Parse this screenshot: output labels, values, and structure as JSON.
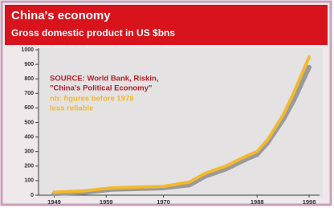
{
  "chart_data": {
    "type": "line",
    "title": "China's economy",
    "subtitle": "Gross domestic product in US $bns",
    "annotations": [
      "SOURCE: World Bank, Riskin,",
      "\"China's Political Economy\"",
      "nb: figures before 1978",
      "less reliable"
    ],
    "x": [
      1949,
      1955,
      1960,
      1965,
      1970,
      1975,
      1978,
      1982,
      1986,
      1988,
      1990,
      1993,
      1995,
      1998
    ],
    "series": [
      {
        "color": "#9a9a9a",
        "values": [
          10,
          20,
          40,
          45,
          50,
          70,
          130,
          180,
          250,
          280,
          360,
          520,
          650,
          880
        ]
      },
      {
        "color": "#f2b930",
        "values": [
          20,
          30,
          50,
          55,
          60,
          90,
          150,
          200,
          270,
          300,
          380,
          550,
          700,
          950
        ]
      }
    ],
    "xlim": [
      1946,
      2000
    ],
    "xticks": [
      1949,
      1959,
      1970,
      1988,
      1998
    ],
    "ylim": [
      0,
      1000
    ],
    "yticks": [
      0,
      100,
      200,
      300,
      400,
      500,
      600,
      700,
      800,
      900,
      1000
    ]
  }
}
